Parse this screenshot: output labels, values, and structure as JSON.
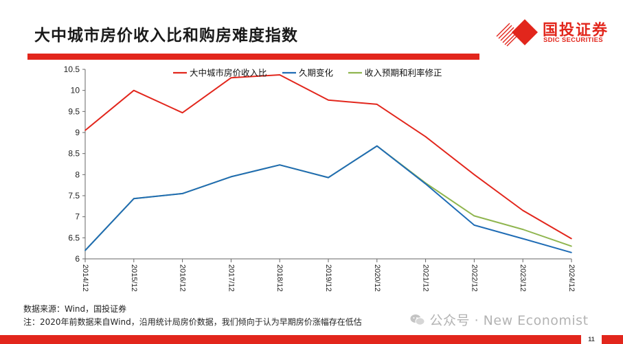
{
  "slide": {
    "title": "大中城市房价收入比和购房难度指数",
    "logo_cn": "国投证券",
    "logo_en": "SDIC SECURITIES",
    "page_number": "11",
    "brand_color": "#e2261c"
  },
  "notes": {
    "source": "数据来源：Wind，国投证券",
    "note": "注：2020年前数据来自Wind，沿用统计局房价数据，我们倾向于认为早期房价涨幅存在低估"
  },
  "watermark": {
    "icon": "wechat-icon",
    "text": "公众号 · New Economist"
  },
  "chart_data": {
    "type": "line",
    "categories": [
      "2014/12",
      "2015/12",
      "2016/12",
      "2017/12",
      "2018/12",
      "2019/12",
      "2020/12",
      "2021/12",
      "2022/12",
      "2023/12",
      "2024/12"
    ],
    "ylim": [
      6,
      10.5
    ],
    "yticks": [
      "6",
      "6.5",
      "7",
      "7.5",
      "8",
      "8.5",
      "9",
      "9.5",
      "10",
      "10.5"
    ],
    "grid": false,
    "legend_position": "top",
    "series": [
      {
        "name": "大中城市房价收入比",
        "color": "#e2261c",
        "values": [
          9.05,
          10.0,
          9.47,
          10.3,
          10.37,
          9.77,
          9.67,
          8.9,
          8.0,
          7.15,
          6.48
        ]
      },
      {
        "name": "久期变化",
        "color": "#1f6cb5",
        "values": [
          6.2,
          7.43,
          7.55,
          7.95,
          8.23,
          7.93,
          8.68,
          7.78,
          6.8,
          6.48,
          6.15
        ]
      },
      {
        "name": "收入预期和利率修正",
        "color": "#8fb54e",
        "values": [
          6.2,
          7.43,
          7.55,
          7.95,
          8.23,
          7.93,
          8.68,
          7.8,
          7.02,
          6.7,
          6.3
        ]
      }
    ]
  }
}
